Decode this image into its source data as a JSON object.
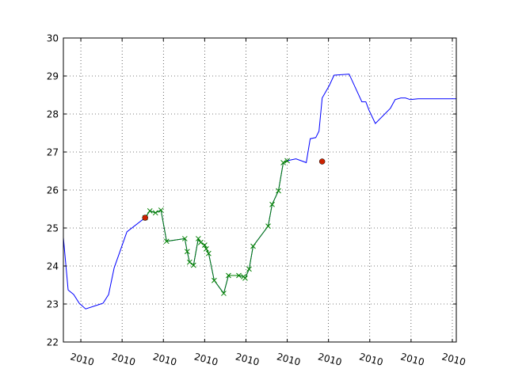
{
  "chart_data": {
    "type": "line",
    "title": "",
    "xlabel": "",
    "ylabel": "",
    "ylim": [
      22,
      30
    ],
    "yticks": [
      22,
      23,
      24,
      25,
      26,
      27,
      28,
      29,
      30
    ],
    "xlim": [
      0,
      495
    ],
    "xticks": [
      22,
      74,
      126,
      178,
      230,
      282,
      334,
      386,
      438,
      490
    ],
    "xtick_labels": [
      "2010",
      "2010",
      "2010",
      "2010",
      "2010",
      "2010",
      "2010",
      "2010",
      "2010",
      "2010"
    ],
    "grid": true,
    "series": [
      {
        "color": "#0000ff",
        "marker": "none",
        "x": [
          0,
          6,
          13,
          20,
          28,
          50,
          57,
          64,
          80,
          103,
          109,
          116,
          123,
          130,
          153,
          156,
          159,
          164,
          170,
          173,
          178,
          180,
          183,
          190,
          202,
          208,
          221,
          227,
          229,
          234,
          239,
          258,
          263,
          271,
          277,
          282,
          293,
          306,
          311,
          318,
          322,
          326,
          335,
          341,
          360,
          376,
          381,
          385,
          393,
          412,
          418,
          425,
          431,
          437,
          447,
          458,
          464,
          467,
          477,
          481,
          485,
          490,
          495
        ],
        "y": [
          24.75,
          23.37,
          23.25,
          23.02,
          22.87,
          23.02,
          23.25,
          23.95,
          24.9,
          25.27,
          25.45,
          25.4,
          25.47,
          24.65,
          24.72,
          24.38,
          24.1,
          24.02,
          24.72,
          24.62,
          24.55,
          24.45,
          24.33,
          23.62,
          23.28,
          23.75,
          23.75,
          23.72,
          23.68,
          23.92,
          24.52,
          25.05,
          25.62,
          25.98,
          26.72,
          26.77,
          26.82,
          26.72,
          27.35,
          27.38,
          27.55,
          28.42,
          28.75,
          29.02,
          29.05,
          28.32,
          28.32,
          28.1,
          27.75,
          28.15,
          28.38,
          28.42,
          28.42,
          28.38,
          28.4,
          28.4,
          28.4,
          28.4,
          28.4,
          28.4,
          28.4,
          28.4,
          28.4
        ]
      },
      {
        "color": "#008000",
        "marker": "x",
        "x": [
          103,
          109,
          116,
          123,
          130,
          153,
          156,
          159,
          164,
          170,
          173,
          178,
          180,
          183,
          190,
          202,
          208,
          221,
          227,
          229,
          234,
          239,
          258,
          263,
          271,
          277,
          282
        ],
        "y": [
          25.27,
          25.45,
          25.4,
          25.47,
          24.65,
          24.72,
          24.38,
          24.1,
          24.02,
          24.72,
          24.62,
          24.55,
          24.45,
          24.33,
          23.62,
          23.28,
          23.75,
          23.75,
          23.72,
          23.68,
          23.92,
          24.52,
          25.05,
          25.62,
          25.98,
          26.72,
          26.77
        ]
      },
      {
        "color": "#cc2200",
        "marker": "o",
        "x": [
          103,
          326
        ],
        "y": [
          25.27,
          26.75
        ]
      }
    ]
  }
}
